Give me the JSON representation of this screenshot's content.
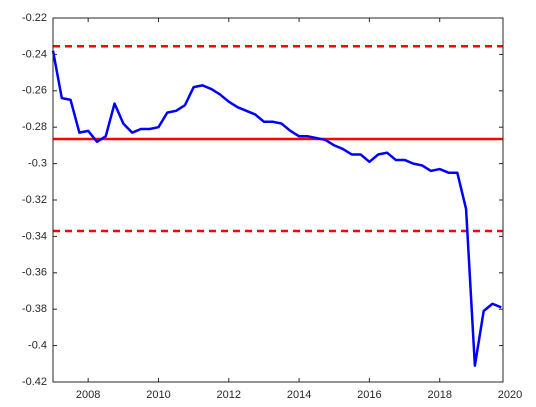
{
  "chart_data": {
    "type": "line",
    "x": [
      2007,
      2007.25,
      2007.5,
      2007.75,
      2008,
      2008.25,
      2008.5,
      2008.75,
      2009,
      2009.25,
      2009.5,
      2009.75,
      2010,
      2010.25,
      2010.5,
      2010.75,
      2011,
      2011.25,
      2011.5,
      2011.75,
      2012,
      2012.25,
      2012.5,
      2012.75,
      2013,
      2013.25,
      2013.5,
      2013.75,
      2014,
      2014.25,
      2014.5,
      2014.75,
      2015,
      2015.25,
      2015.5,
      2015.75,
      2016,
      2016.25,
      2016.5,
      2016.75,
      2017,
      2017.25,
      2017.5,
      2017.75,
      2018,
      2018.25,
      2018.5,
      2018.75,
      2019,
      2019.25,
      2019.5,
      2019.75
    ],
    "series": [
      {
        "color": "#0000ff",
        "values": [
          -0.238,
          -0.264,
          -0.265,
          -0.283,
          -0.282,
          -0.288,
          -0.285,
          -0.267,
          -0.278,
          -0.283,
          -0.281,
          -0.281,
          -0.28,
          -0.272,
          -0.271,
          -0.268,
          -0.258,
          -0.257,
          -0.259,
          -0.262,
          -0.266,
          -0.269,
          -0.271,
          -0.273,
          -0.277,
          -0.277,
          -0.278,
          -0.282,
          -0.285,
          -0.285,
          -0.286,
          -0.287,
          -0.29,
          -0.292,
          -0.295,
          -0.295,
          -0.299,
          -0.295,
          -0.294,
          -0.298,
          -0.298,
          -0.3,
          -0.301,
          -0.304,
          -0.303,
          -0.305,
          -0.305,
          -0.325,
          -0.411,
          -0.381,
          -0.377,
          -0.379
        ]
      }
    ],
    "hlines": [
      {
        "value": -0.2865,
        "style": "solid",
        "color": "#ff0000"
      },
      {
        "value": -0.2355,
        "style": "dashed",
        "color": "#ff0000"
      },
      {
        "value": -0.337,
        "style": "dashed",
        "color": "#ff0000"
      }
    ],
    "xlim": [
      2007,
      2019.8
    ],
    "xticks": [
      2008,
      2010,
      2012,
      2014,
      2016,
      2018,
      2020
    ],
    "ylim": [
      -0.42,
      -0.22
    ],
    "yticks": [
      -0.42,
      -0.4,
      -0.38,
      -0.36,
      -0.34,
      -0.32,
      -0.3,
      -0.28,
      -0.26,
      -0.24,
      -0.22
    ]
  }
}
